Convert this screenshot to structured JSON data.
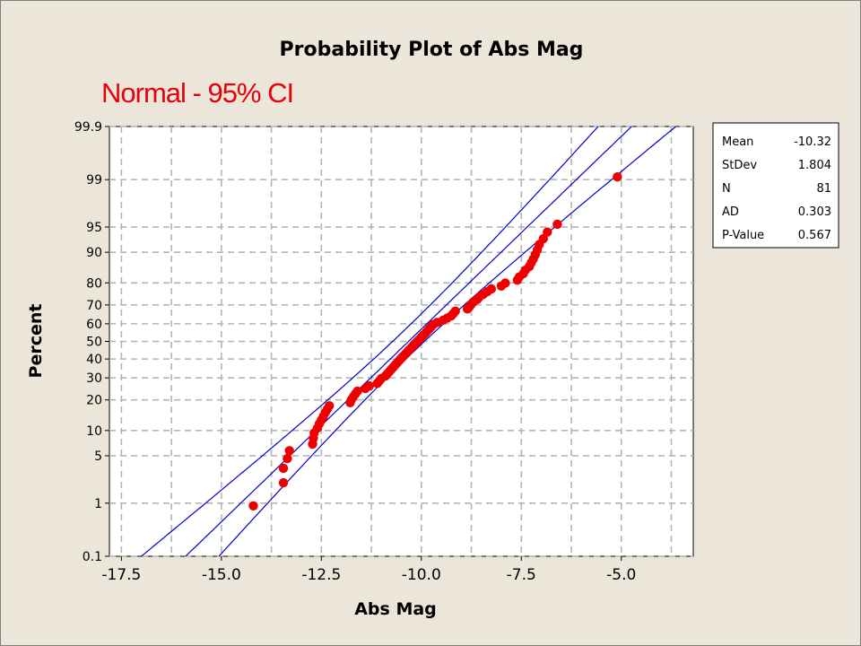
{
  "chart_data": {
    "type": "scatter",
    "title": "Probability Plot of Abs Mag",
    "subtitle": "Normal - 95% CI",
    "xlabel": "Abs Mag",
    "ylabel": "Percent",
    "xlim": [
      -17.8,
      -3.2
    ],
    "ylim": [
      0.1,
      99.9
    ],
    "y_scale": "normal-probability",
    "grid": true,
    "x_ticks": [
      -17.5,
      -15.0,
      -12.5,
      -10.0,
      -7.5,
      -5.0
    ],
    "x_tick_labels": [
      "-17.5",
      "-15.0",
      "-12.5",
      "-10.0",
      "-7.5",
      "-5.0"
    ],
    "x_grid_minor": [
      -16.25,
      -13.75,
      -11.25,
      -8.75,
      -6.25,
      -3.75
    ],
    "y_ticks": [
      0.1,
      1,
      5,
      10,
      20,
      30,
      40,
      50,
      60,
      70,
      80,
      90,
      95,
      99,
      99.9
    ],
    "y_tick_labels": [
      "0.1",
      "1",
      "5",
      "10",
      "20",
      "30",
      "40",
      "50",
      "60",
      "70",
      "80",
      "90",
      "95",
      "99",
      "99.9"
    ],
    "fit": {
      "mean": -10.32,
      "stdev": 1.804
    },
    "ci": {
      "level": 95,
      "n": 81
    },
    "x": [
      -14.2,
      -13.45,
      -13.45,
      -13.35,
      -13.3,
      -12.72,
      -12.7,
      -12.68,
      -12.6,
      -12.55,
      -12.5,
      -12.45,
      -12.4,
      -12.35,
      -12.3,
      -11.78,
      -11.75,
      -11.7,
      -11.65,
      -11.6,
      -11.4,
      -11.3,
      -11.1,
      -11.05,
      -11.0,
      -10.9,
      -10.85,
      -10.8,
      -10.75,
      -10.7,
      -10.65,
      -10.6,
      -10.55,
      -10.5,
      -10.45,
      -10.4,
      -10.35,
      -10.3,
      -10.25,
      -10.2,
      -10.15,
      -10.1,
      -10.05,
      -10.0,
      -9.95,
      -9.9,
      -9.85,
      -9.8,
      -9.75,
      -9.7,
      -9.6,
      -9.45,
      -9.35,
      -9.25,
      -9.2,
      -9.15,
      -8.85,
      -8.8,
      -8.75,
      -8.7,
      -8.6,
      -8.55,
      -8.45,
      -8.35,
      -8.25,
      -8.0,
      -7.9,
      -7.6,
      -7.55,
      -7.45,
      -7.4,
      -7.3,
      -7.25,
      -7.2,
      -7.15,
      -7.1,
      -7.05,
      -6.95,
      -6.85,
      -6.6,
      -5.1
    ],
    "y": [
      0.9,
      2.1,
      3.4,
      4.6,
      5.8,
      7.0,
      8.2,
      9.4,
      10.6,
      11.8,
      12.9,
      14.1,
      15.3,
      16.5,
      17.7,
      18.9,
      20.1,
      21.3,
      22.5,
      23.7,
      24.9,
      26.1,
      27.3,
      28.5,
      29.7,
      30.9,
      32.0,
      33.2,
      34.4,
      35.6,
      36.8,
      38.0,
      39.2,
      40.4,
      41.6,
      42.8,
      44.0,
      45.2,
      46.4,
      47.6,
      48.8,
      50.0,
      51.2,
      52.4,
      53.6,
      54.8,
      56.0,
      57.2,
      58.4,
      59.6,
      60.8,
      62.0,
      63.2,
      64.4,
      65.6,
      66.8,
      68.0,
      69.1,
      70.3,
      71.5,
      72.7,
      73.9,
      75.1,
      76.3,
      77.5,
      78.7,
      79.9,
      81.1,
      82.3,
      83.5,
      84.7,
      85.9,
      87.1,
      88.2,
      89.4,
      90.6,
      91.8,
      93.0,
      94.2,
      95.4,
      99.1
    ],
    "point_color": "#ee0000",
    "line_color": "#0000cc",
    "stats": {
      "rows": [
        {
          "label": "Mean",
          "value": "-10.32"
        },
        {
          "label": "StDev",
          "value": "1.804"
        },
        {
          "label": "N",
          "value": "81"
        },
        {
          "label": "AD",
          "value": "0.303"
        },
        {
          "label": "P-Value",
          "value": "0.567"
        }
      ]
    }
  }
}
